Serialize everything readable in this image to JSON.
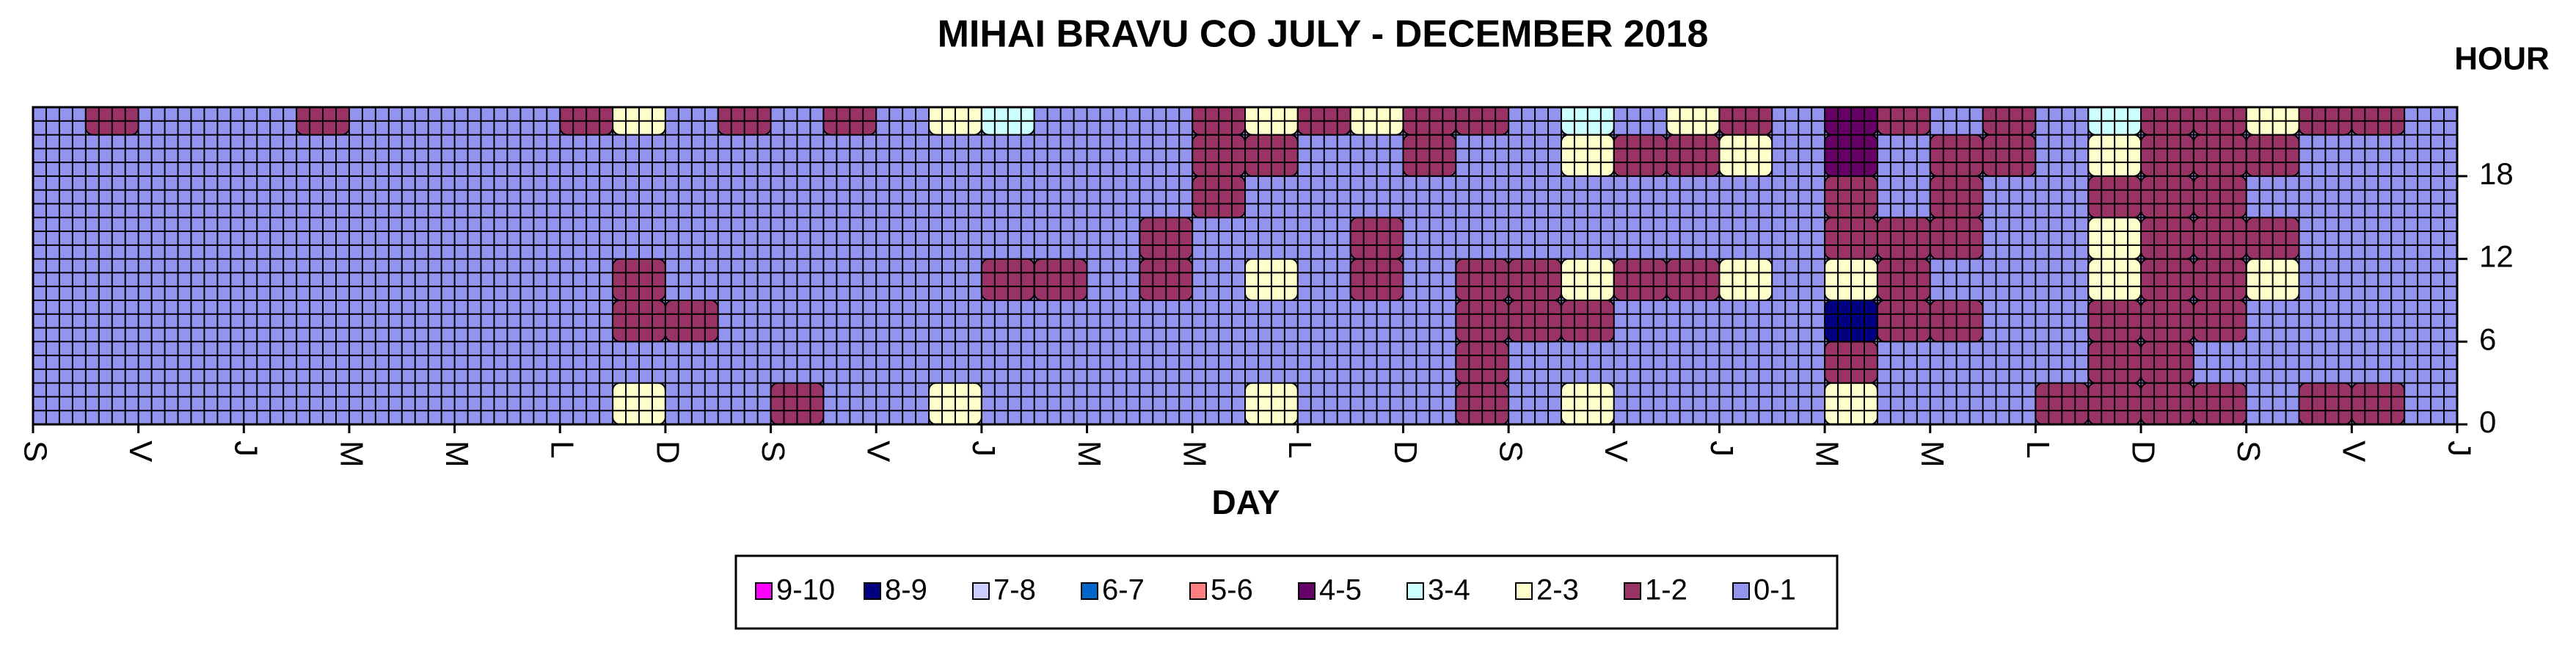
{
  "chart_data": {
    "type": "contour",
    "title": "MIHAI BRAVU CO JULY - DECEMBER 2018",
    "x_label": "DAY",
    "y_label": "HOUR",
    "xlim": [
      0,
      184
    ],
    "xticks": [
      {
        "value": 0,
        "label": "S"
      },
      {
        "value": 8,
        "label": "V"
      },
      {
        "value": 16,
        "label": "J"
      },
      {
        "value": 24,
        "label": "M"
      },
      {
        "value": 32,
        "label": "M"
      },
      {
        "value": 40,
        "label": "L"
      },
      {
        "value": 48,
        "label": "D"
      },
      {
        "value": 56,
        "label": "S"
      },
      {
        "value": 64,
        "label": "V"
      },
      {
        "value": 72,
        "label": "J"
      },
      {
        "value": 80,
        "label": "M"
      },
      {
        "value": 88,
        "label": "M"
      },
      {
        "value": 96,
        "label": "L"
      },
      {
        "value": 104,
        "label": "D"
      },
      {
        "value": 112,
        "label": "S"
      },
      {
        "value": 120,
        "label": "V"
      },
      {
        "value": 128,
        "label": "J"
      },
      {
        "value": 136,
        "label": "M"
      },
      {
        "value": 144,
        "label": "M"
      },
      {
        "value": 152,
        "label": "L"
      },
      {
        "value": 160,
        "label": "D"
      },
      {
        "value": 168,
        "label": "S"
      },
      {
        "value": 176,
        "label": "V"
      },
      {
        "value": 184,
        "label": "J"
      }
    ],
    "ylim": [
      0,
      23
    ],
    "yticks": [
      0,
      6,
      12,
      18
    ],
    "grid": true,
    "x": [
      2,
      6,
      10,
      14,
      18,
      22,
      26,
      30,
      34,
      38,
      42,
      46,
      50,
      54,
      58,
      62,
      66,
      70,
      74,
      78,
      82,
      86,
      90,
      94,
      98,
      102,
      106,
      110,
      114,
      118,
      122,
      126,
      130,
      134,
      138,
      142,
      146,
      150,
      154,
      158,
      162,
      166,
      170,
      174,
      178,
      182
    ],
    "y": [
      1.5,
      4.5,
      7.5,
      10.5,
      13.5,
      16.5,
      19.5,
      22.5
    ],
    "z": [
      [
        0.5,
        0.5,
        0.5,
        0.5,
        0.5,
        0.5,
        0.5,
        0.5,
        0.5,
        0.5,
        0.5,
        2.5,
        0.5,
        0.5,
        1.5,
        0.5,
        0.5,
        2.5,
        0.5,
        0.5,
        0.5,
        0.5,
        0.5,
        2.5,
        0.5,
        0.5,
        0.5,
        1.5,
        0.5,
        2.5,
        0.5,
        0.5,
        0.5,
        0.5,
        2.5,
        0.5,
        0.5,
        0.5,
        1.5,
        1.5,
        1.5,
        1.5,
        0.5,
        1.5,
        1.5,
        0.5
      ],
      [
        0.5,
        0.5,
        0.5,
        0.5,
        0.5,
        0.5,
        0.5,
        0.5,
        0.5,
        0.5,
        0.5,
        0.5,
        0.5,
        0.5,
        0.5,
        0.5,
        0.5,
        0.5,
        0.5,
        0.5,
        0.5,
        0.5,
        0.5,
        0.5,
        0.5,
        0.5,
        0.5,
        1.5,
        0.5,
        0.5,
        0.5,
        0.5,
        0.5,
        0.5,
        1.5,
        0.5,
        0.5,
        0.5,
        0.5,
        1.5,
        1.5,
        0.5,
        0.5,
        0.5,
        0.5,
        0.5
      ],
      [
        0.5,
        0.5,
        0.5,
        0.5,
        0.5,
        0.5,
        0.5,
        0.5,
        0.5,
        0.5,
        0.5,
        1.5,
        1.5,
        0.5,
        0.5,
        0.5,
        0.5,
        0.5,
        0.5,
        0.5,
        0.5,
        0.5,
        0.5,
        0.5,
        0.5,
        0.5,
        0.5,
        1.5,
        1.5,
        1.5,
        0.5,
        0.5,
        0.5,
        0.5,
        8.5,
        1.5,
        1.5,
        0.5,
        0.5,
        1.5,
        1.5,
        1.5,
        0.5,
        0.5,
        0.5,
        0.5
      ],
      [
        0.5,
        0.5,
        0.5,
        0.5,
        0.5,
        0.5,
        0.5,
        0.5,
        0.5,
        0.5,
        0.5,
        1.5,
        0.5,
        0.5,
        0.5,
        0.5,
        0.5,
        0.5,
        1.5,
        1.5,
        0.5,
        1.5,
        0.5,
        2.5,
        0.5,
        1.5,
        0.5,
        1.5,
        1.5,
        2.5,
        1.5,
        1.5,
        2.5,
        0.5,
        2.5,
        1.5,
        0.5,
        0.5,
        0.5,
        2.5,
        1.5,
        1.5,
        2.5,
        0.5,
        0.5,
        0.5
      ],
      [
        0.5,
        0.5,
        0.5,
        0.5,
        0.5,
        0.5,
        0.5,
        0.5,
        0.5,
        0.5,
        0.5,
        0.5,
        0.5,
        0.5,
        0.5,
        0.5,
        0.5,
        0.5,
        0.5,
        0.5,
        0.5,
        1.5,
        0.5,
        0.5,
        0.5,
        1.5,
        0.5,
        0.5,
        0.5,
        0.5,
        0.5,
        0.5,
        0.5,
        0.5,
        1.5,
        1.5,
        1.5,
        0.5,
        0.5,
        2.5,
        1.5,
        1.5,
        1.5,
        0.5,
        0.5,
        0.5
      ],
      [
        0.5,
        0.5,
        0.5,
        0.5,
        0.5,
        0.5,
        0.5,
        0.5,
        0.5,
        0.5,
        0.5,
        0.5,
        0.5,
        0.5,
        0.5,
        0.5,
        0.5,
        0.5,
        0.5,
        0.5,
        0.5,
        0.5,
        1.5,
        0.5,
        0.5,
        0.5,
        0.5,
        0.5,
        0.5,
        0.5,
        0.5,
        0.5,
        0.5,
        0.5,
        1.5,
        0.5,
        1.5,
        0.5,
        0.5,
        1.5,
        1.5,
        1.5,
        0.5,
        0.5,
        0.5,
        0.5
      ],
      [
        0.5,
        0.5,
        0.5,
        0.5,
        0.5,
        0.5,
        0.5,
        0.5,
        0.5,
        0.5,
        0.5,
        0.5,
        0.5,
        0.5,
        0.5,
        0.5,
        0.5,
        0.5,
        0.5,
        0.5,
        0.5,
        0.5,
        1.5,
        1.5,
        0.5,
        0.5,
        1.5,
        0.5,
        0.5,
        2.5,
        1.5,
        1.5,
        2.5,
        0.5,
        4.5,
        0.5,
        1.5,
        1.5,
        0.5,
        2.5,
        1.5,
        1.5,
        1.5,
        0.5,
        0.5,
        0.5
      ],
      [
        0.5,
        1.5,
        0.5,
        0.5,
        0.5,
        1.5,
        0.5,
        0.5,
        0.5,
        0.5,
        1.5,
        2.5,
        0.5,
        1.5,
        0.5,
        1.5,
        0.5,
        2.5,
        3.5,
        0.5,
        0.5,
        0.5,
        1.5,
        2.5,
        1.5,
        2.5,
        1.5,
        1.5,
        0.5,
        3.5,
        0.5,
        2.5,
        1.5,
        0.5,
        4.5,
        1.5,
        0.5,
        1.5,
        0.5,
        3.5,
        1.5,
        1.5,
        2.5,
        1.5,
        1.5,
        0.5
      ]
    ],
    "legend": [
      {
        "name": "9-10",
        "color": "#ff00ff"
      },
      {
        "name": "8-9",
        "color": "#000080"
      },
      {
        "name": "7-8",
        "color": "#ccccff"
      },
      {
        "name": "6-7",
        "color": "#0066cc"
      },
      {
        "name": "5-6",
        "color": "#ff8080"
      },
      {
        "name": "4-5",
        "color": "#660066"
      },
      {
        "name": "3-4",
        "color": "#ccffff"
      },
      {
        "name": "2-3",
        "color": "#ffffcc"
      },
      {
        "name": "1-2",
        "color": "#993366"
      },
      {
        "name": "0-1",
        "color": "#9393f0"
      }
    ]
  }
}
